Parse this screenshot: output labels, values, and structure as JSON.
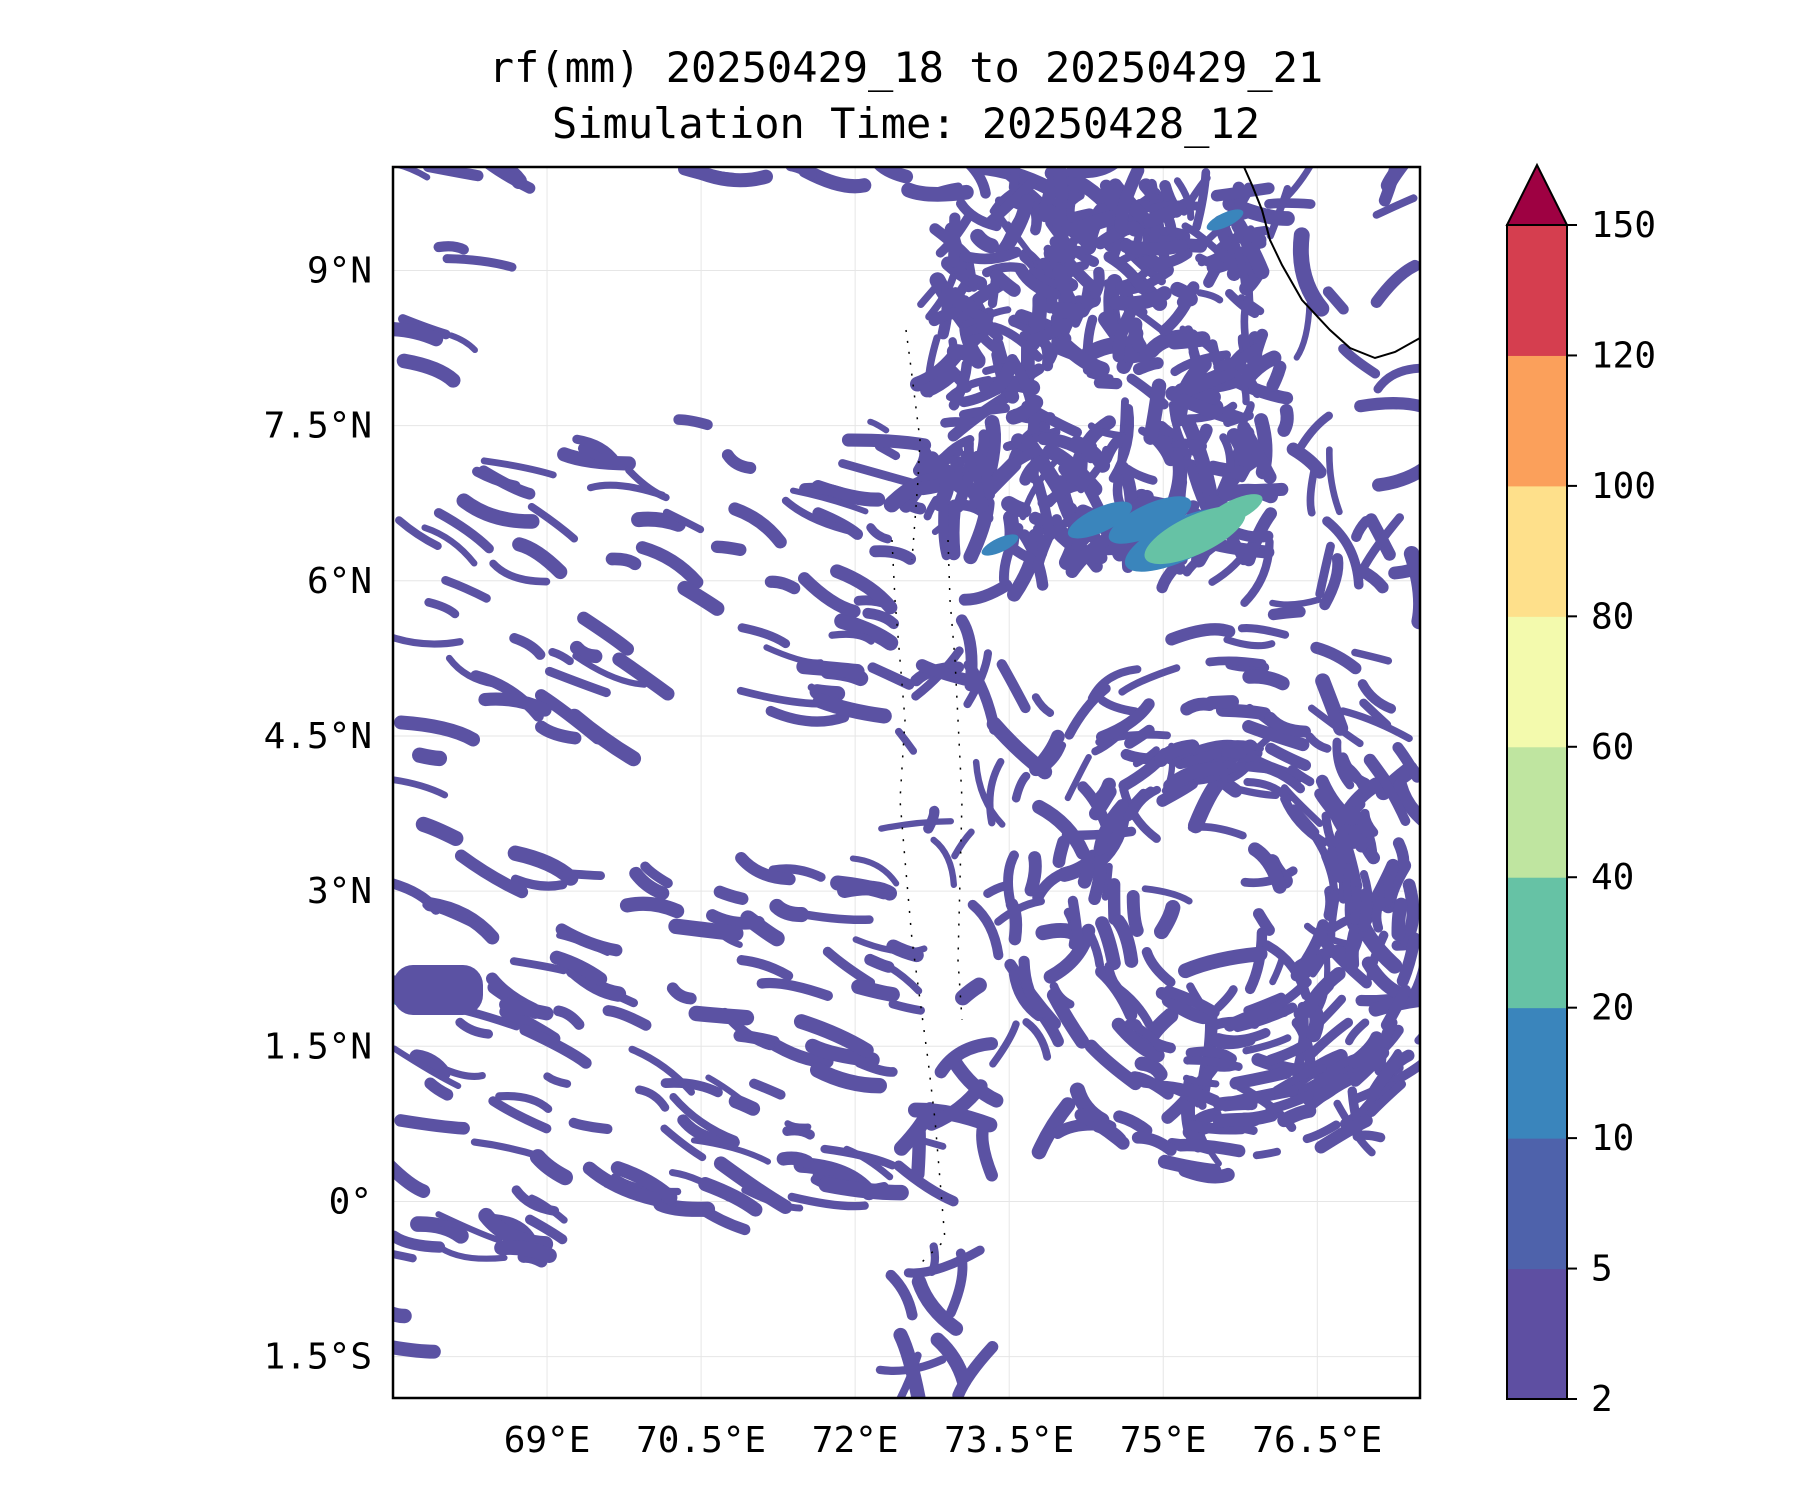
{
  "title_line1": "rf(mm) 20250429_18 to 20250429_21",
  "title_line2": "Simulation Time: 20250428_12",
  "map": {
    "lon_range": [
      67.5,
      77.5
    ],
    "lat_range": [
      -1.9,
      10.0
    ],
    "x_ticks": [
      {
        "lon": 69.0,
        "label": "69°E"
      },
      {
        "lon": 70.5,
        "label": "70.5°E"
      },
      {
        "lon": 72.0,
        "label": "72°E"
      },
      {
        "lon": 73.5,
        "label": "73.5°E"
      },
      {
        "lon": 75.0,
        "label": "75°E"
      },
      {
        "lon": 76.5,
        "label": "76.5°E"
      }
    ],
    "y_ticks": [
      {
        "lat": 9.0,
        "label": "9°N"
      },
      {
        "lat": 7.5,
        "label": "7.5°N"
      },
      {
        "lat": 6.0,
        "label": "6°N"
      },
      {
        "lat": 4.5,
        "label": "4.5°N"
      },
      {
        "lat": 3.0,
        "label": "3°N"
      },
      {
        "lat": 1.5,
        "label": "1.5°N"
      },
      {
        "lat": 0.0,
        "label": "0°"
      },
      {
        "lat": -1.5,
        "label": "1.5°S"
      }
    ],
    "grid": true
  },
  "colorbar": {
    "levels": [
      "2",
      "5",
      "10",
      "20",
      "40",
      "60",
      "80",
      "100",
      "120",
      "150"
    ],
    "colors": [
      "#5e4fa2",
      "#4e62ab",
      "#3a85bc",
      "#66c2a5",
      "#bfe5a0",
      "#f3faad",
      "#fee08b",
      "#fba05b",
      "#d53e4f"
    ],
    "extend_color": "#9e0142",
    "extend": "max"
  },
  "colors": {
    "rain_fill": "#5b52a3",
    "rain_10_20": "#3a85bc",
    "rain_20_40": "#66c2a5",
    "coast": "#000000"
  }
}
